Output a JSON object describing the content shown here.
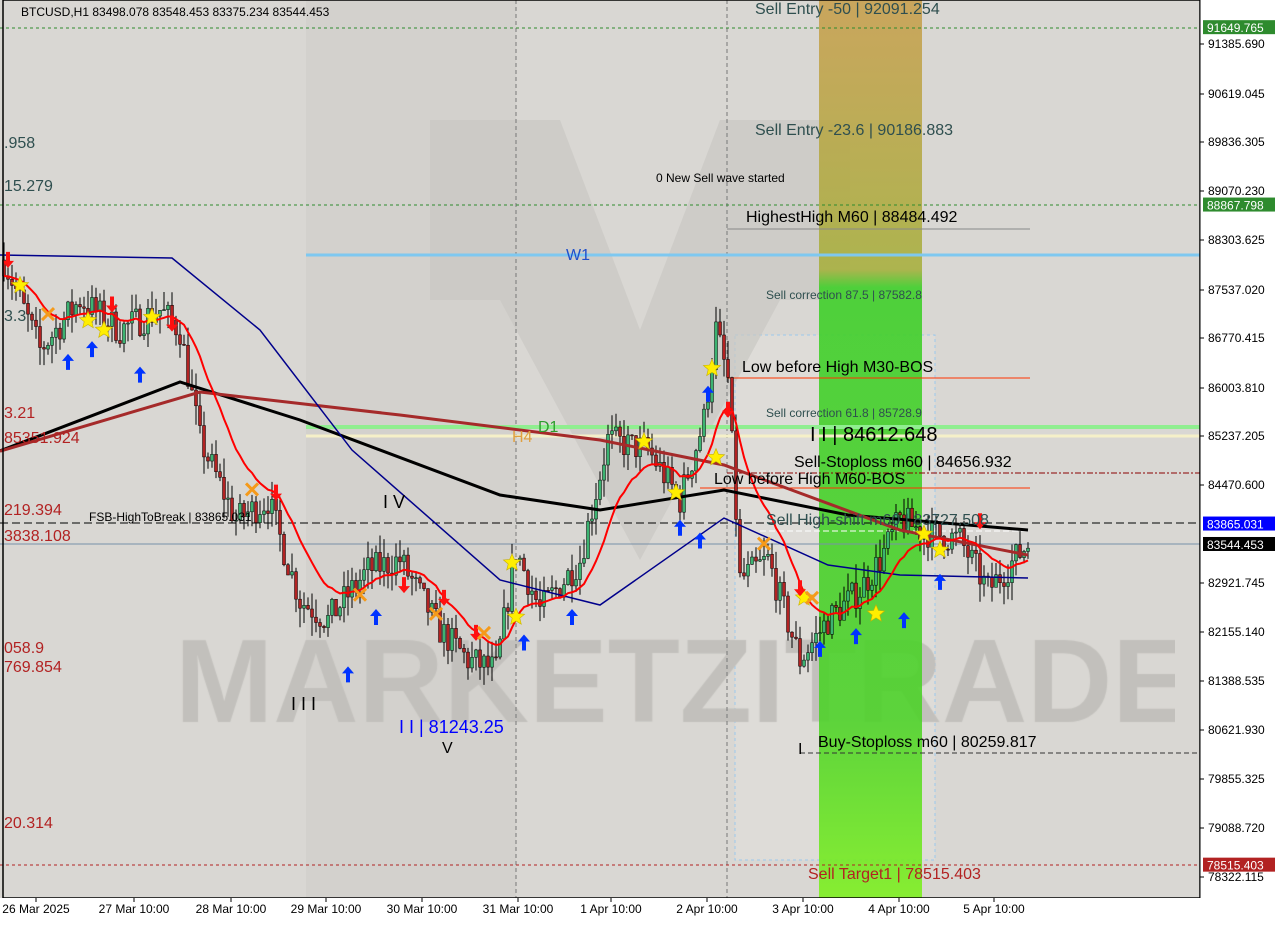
{
  "header": {
    "symbol_line": "BTCUSD,H1  83498.078 83548.453 83375.234 83544.453"
  },
  "colors": {
    "background": "#d9d7d3",
    "bull": "#3cb371",
    "bear": "#b22222",
    "ma_slow": "#000000",
    "ma_mid": "#a52a2a",
    "ma_blue": "#00008b",
    "ma_fast": "#ff0000",
    "zone_green": "#3fcf2a",
    "zone_yellow": "#c8a040",
    "w1": "#7ec8f0",
    "d1": "#90ee90",
    "h4": "#f5f0c8"
  },
  "chart_data": {
    "type": "candlestick",
    "symbol": "BTCUSD",
    "timeframe": "H1",
    "ylim": [
      78000,
      92800
    ],
    "y_ticks": [
      "91385.690",
      "90619.045",
      "89836.305",
      "89070.230",
      "88303.625",
      "87537.020",
      "86770.415",
      "86003.810",
      "85237.205",
      "84470.600",
      "82921.745",
      "82155.140",
      "81388.535",
      "80621.930",
      "79855.325",
      "79088.720",
      "78322.115"
    ],
    "x_ticks": [
      "26 Mar 2025",
      "27 Mar 10:00",
      "28 Mar 10:00",
      "29 Mar 10:00",
      "30 Mar 10:00",
      "31 Mar 10:00",
      "1 Apr 10:00",
      "2 Apr 10:00",
      "3 Apr 10:00",
      "4 Apr 10:00",
      "5 Apr 10:00"
    ],
    "price_path": [
      [
        "2025-03-26T02:00",
        87998
      ],
      [
        "2025-03-26T11:00",
        86587
      ],
      [
        "2025-03-26T21:00",
        87371
      ],
      [
        "2025-03-27T07:00",
        86900
      ],
      [
        "2025-03-27T17:00",
        87214
      ],
      [
        "2025-03-27T22:00",
        86900
      ],
      [
        "2025-03-28T03:00",
        85175
      ],
      [
        "2025-03-28T12:00",
        83920
      ],
      [
        "2025-03-28T20:00",
        84234
      ],
      [
        "2025-03-29T04:00",
        82666
      ],
      [
        "2025-03-29T11:00",
        82352
      ],
      [
        "2025-03-29T21:00",
        83136
      ],
      [
        "2025-03-30T05:00",
        83293
      ],
      [
        "2025-03-30T15:00",
        82195
      ],
      [
        "2025-03-30T22:00",
        81725
      ],
      [
        "2025-03-31T05:00",
        81568
      ],
      [
        "2025-03-31T10:00",
        83450
      ],
      [
        "2025-03-31T16:00",
        82509
      ],
      [
        "2025-04-01T02:00",
        83293
      ],
      [
        "2025-04-01T09:00",
        85175
      ],
      [
        "2025-04-01T19:00",
        85018
      ],
      [
        "2025-04-02T03:00",
        84234
      ],
      [
        "2025-04-02T09:00",
        85489
      ],
      [
        "2025-04-02T12:00",
        86900
      ],
      [
        "2025-04-02T15:00",
        86116
      ],
      [
        "2025-04-02T18:00",
        82980
      ],
      [
        "2025-04-03T01:00",
        83293
      ],
      [
        "2025-04-03T09:00",
        81725
      ],
      [
        "2025-04-03T16:00",
        82352
      ],
      [
        "2025-04-04T00:00",
        82822
      ],
      [
        "2025-04-04T05:00",
        83293
      ],
      [
        "2025-04-04T10:00",
        83920
      ],
      [
        "2025-04-04T15:00",
        83763
      ],
      [
        "2025-04-05T01:00",
        83607
      ],
      [
        "2025-04-05T08:00",
        82822
      ],
      [
        "2025-04-05T18:00",
        83544
      ]
    ],
    "last_ohlc": {
      "open": 83498.078,
      "high": 83548.453,
      "low": 83375.234,
      "close": 83544.453
    },
    "series": [
      {
        "color": "#000000",
        "points": [
          [
            "2025-03-26T01:00",
            85004
          ],
          [
            "2025-03-27T22:00",
            86085
          ],
          [
            "2025-03-29T04:00",
            85489
          ],
          [
            "2025-03-31T06:00",
            84313
          ],
          [
            "2025-04-01T07:00",
            84077
          ],
          [
            "2025-04-02T14:00",
            84391
          ],
          [
            "2025-04-03T21:00",
            83999
          ],
          [
            "2025-04-05T18:00",
            83763
          ]
        ]
      },
      {
        "color": "#a52a2a",
        "points": [
          [
            "2025-03-26T01:00",
            85000
          ],
          [
            "2025-03-28T03:00",
            85928
          ],
          [
            "2025-03-30T05:00",
            85567
          ],
          [
            "2025-04-01T07:00",
            85175
          ],
          [
            "2025-04-02T14:00",
            84783
          ],
          [
            "2025-04-04T10:00",
            83763
          ],
          [
            "2025-04-05T18:00",
            83371
          ]
        ]
      },
      {
        "color": "#00008b",
        "points": [
          [
            "2025-03-26T01:00",
            88076
          ],
          [
            "2025-03-27T20:00",
            88029
          ],
          [
            "2025-03-28T18:00",
            86900
          ],
          [
            "2025-03-29T17:00",
            85018
          ],
          [
            "2025-03-31T06:00",
            82980
          ],
          [
            "2025-04-01T07:00",
            82587
          ],
          [
            "2025-04-02T14:00",
            83951
          ],
          [
            "2025-04-03T16:00",
            83214
          ],
          [
            "2025-04-04T10:00",
            83058
          ],
          [
            "2025-04-05T18:00",
            83011
          ]
        ]
      }
    ],
    "price_tags": [
      {
        "value": "91649.765",
        "price": 91649.765,
        "bg": "#2e8b2e",
        "fg": "#ffffff"
      },
      {
        "value": "88867.798",
        "price": 88867.798,
        "bg": "#2e8b2e",
        "fg": "#ffffff"
      },
      {
        "value": "83865.031",
        "price": 83865.031,
        "bg": "#0000ff",
        "fg": "#ffffff"
      },
      {
        "value": "83544.453",
        "price": 83544.453,
        "bg": "#000000",
        "fg": "#ffffff"
      },
      {
        "value": "78515.403",
        "price": 78515.403,
        "bg": "#b22222",
        "fg": "#ffffff"
      }
    ],
    "annotations": [
      {
        "text": "Sell Entry -50 | 92091.254",
        "color": "#2f4f4f",
        "size": 16
      },
      {
        "text": "Sell Entry -23.6 | 90186.883",
        "color": "#2f4f4f",
        "size": 16
      },
      {
        "text": "0 New Sell wave started",
        "color": "#000000",
        "size": 12
      },
      {
        "text": "HighestHigh   M60 | 88484.492",
        "color": "#000000",
        "size": 16
      },
      {
        "text": "W1",
        "color": "#1e4fcc",
        "size": 16
      },
      {
        "text": "Sell correction 87.5 | 87582.8",
        "color": "#2f4f4f",
        "size": 12
      },
      {
        "text": "Low before High   M30-BOS",
        "color": "#000000",
        "size": 16
      },
      {
        "text": "Sell correction 61.8 | 85728.9",
        "color": "#2f4f4f",
        "size": 12
      },
      {
        "text": "D1",
        "color": "#2e9e2e",
        "size": 16
      },
      {
        "text": "H4",
        "color": "#e0a040",
        "size": 16
      },
      {
        "text": "I I | 84612.648",
        "color": "#000000",
        "size": 20
      },
      {
        "text": "Sell-Stoploss m60 | 84656.932",
        "color": "#000000",
        "size": 16
      },
      {
        "text": "Low before High   M60-BOS",
        "color": "#000000",
        "size": 16
      },
      {
        "text": "FSB-HighToBreak | 83865.031",
        "color": "#000000",
        "size": 12
      },
      {
        "text": "Sell High-shift m60 | 83727.508",
        "color": "#2f4f4f",
        "size": 16
      },
      {
        "text": "I V",
        "color": "#000000",
        "size": 18
      },
      {
        "text": "I I I",
        "color": "#000000",
        "size": 18
      },
      {
        "text": "I I | 81243.25",
        "color": "#0000ff",
        "size": 18
      },
      {
        "text": "V",
        "color": "#000000",
        "size": 16
      },
      {
        "text": "Buy-Stoploss m60 | 80259.817",
        "color": "#000000",
        "size": 16
      },
      {
        "text": "I",
        "color": "#000000",
        "size": 16
      },
      {
        "text": "Sell Target1 | 78515.403",
        "color": "#b22222",
        "size": 16
      }
    ],
    "left_labels": [
      {
        "text": ".958",
        "color": "#2f4f4f"
      },
      {
        "text": "15.279",
        "color": "#2f4f4f"
      },
      {
        "text": "3.3",
        "color": "#2f4f4f"
      },
      {
        "text": "3.21",
        "color": "#b22222"
      },
      {
        "text": "85351.924",
        "color": "#b22222"
      },
      {
        "text": "219.394",
        "color": "#b22222"
      },
      {
        "text": "3838.108",
        "color": "#b22222"
      },
      {
        "text": "058.9",
        "color": "#b22222"
      },
      {
        "text": "769.854",
        "color": "#b22222"
      },
      {
        "text": "20.314",
        "color": "#b22222"
      }
    ],
    "markers": [
      {
        "type": "star",
        "t": "2025-03-26T06:00",
        "p": 87600
      },
      {
        "type": "star",
        "t": "2025-03-26T23:00",
        "p": 87050
      },
      {
        "type": "star",
        "t": "2025-03-27T03:00",
        "p": 86900
      },
      {
        "type": "star",
        "t": "2025-03-27T15:00",
        "p": 87100
      },
      {
        "type": "star",
        "t": "2025-03-31T09:00",
        "p": 83250
      },
      {
        "type": "star",
        "t": "2025-03-31T10:00",
        "p": 82400
      },
      {
        "type": "star",
        "t": "2025-04-01T18:00",
        "p": 85150
      },
      {
        "type": "star",
        "t": "2025-04-02T02:00",
        "p": 84350
      },
      {
        "type": "star",
        "t": "2025-04-02T11:00",
        "p": 86300
      },
      {
        "type": "star",
        "t": "2025-04-02T12:00",
        "p": 84900
      },
      {
        "type": "star",
        "t": "2025-04-03T10:00",
        "p": 82700
      },
      {
        "type": "star",
        "t": "2025-04-04T04:00",
        "p": 82450
      },
      {
        "type": "star",
        "t": "2025-04-04T16:00",
        "p": 83700
      },
      {
        "type": "star",
        "t": "2025-04-04T20:00",
        "p": 83450
      },
      {
        "type": "up",
        "t": "2025-03-26T18:00",
        "p": 86400
      },
      {
        "type": "up",
        "t": "2025-03-27T00:00",
        "p": 86600
      },
      {
        "type": "up",
        "t": "2025-03-27T12:00",
        "p": 86200
      },
      {
        "type": "up",
        "t": "2025-03-29T16:00",
        "p": 81500
      },
      {
        "type": "up",
        "t": "2025-03-29T23:00",
        "p": 82400
      },
      {
        "type": "up",
        "t": "2025-03-31T12:00",
        "p": 82000
      },
      {
        "type": "up",
        "t": "2025-04-01T00:00",
        "p": 82400
      },
      {
        "type": "up",
        "t": "2025-04-02T03:00",
        "p": 83800
      },
      {
        "type": "up",
        "t": "2025-04-02T08:00",
        "p": 83600
      },
      {
        "type": "up",
        "t": "2025-04-02T10:00",
        "p": 85900
      },
      {
        "type": "up",
        "t": "2025-04-03T14:00",
        "p": 81900
      },
      {
        "type": "up",
        "t": "2025-04-03T23:00",
        "p": 82100
      },
      {
        "type": "up",
        "t": "2025-04-04T11:00",
        "p": 82350
      },
      {
        "type": "up",
        "t": "2025-04-04T20:00",
        "p": 82950
      },
      {
        "type": "down",
        "t": "2025-03-26T03:00",
        "p": 88000
      },
      {
        "type": "down",
        "t": "2025-03-27T05:00",
        "p": 87300
      },
      {
        "type": "down",
        "t": "2025-03-27T20:00",
        "p": 87000
      },
      {
        "type": "down",
        "t": "2025-03-28T22:00",
        "p": 84350
      },
      {
        "type": "down",
        "t": "2025-03-30T06:00",
        "p": 82900
      },
      {
        "type": "down",
        "t": "2025-03-30T16:00",
        "p": 82700
      },
      {
        "type": "down",
        "t": "2025-03-31T00:00",
        "p": 82150
      },
      {
        "type": "down",
        "t": "2025-04-02T15:00",
        "p": 85650
      },
      {
        "type": "down",
        "t": "2025-04-03T09:00",
        "p": 82850
      },
      {
        "type": "down",
        "t": "2025-04-05T06:00",
        "p": 83900
      },
      {
        "type": "cross",
        "t": "2025-03-26T13:00",
        "p": 87150
      },
      {
        "type": "cross",
        "t": "2025-03-28T16:00",
        "p": 84400
      },
      {
        "type": "cross",
        "t": "2025-03-29T19:00",
        "p": 82750
      },
      {
        "type": "cross",
        "t": "2025-03-30T14:00",
        "p": 82450
      },
      {
        "type": "cross",
        "t": "2025-03-31T02:00",
        "p": 82150
      },
      {
        "type": "cross",
        "t": "2025-04-03T00:00",
        "p": 83550
      },
      {
        "type": "cross",
        "t": "2025-04-03T12:00",
        "p": 82700
      }
    ]
  },
  "watermark": {
    "text": "MARKETZITRADE"
  }
}
